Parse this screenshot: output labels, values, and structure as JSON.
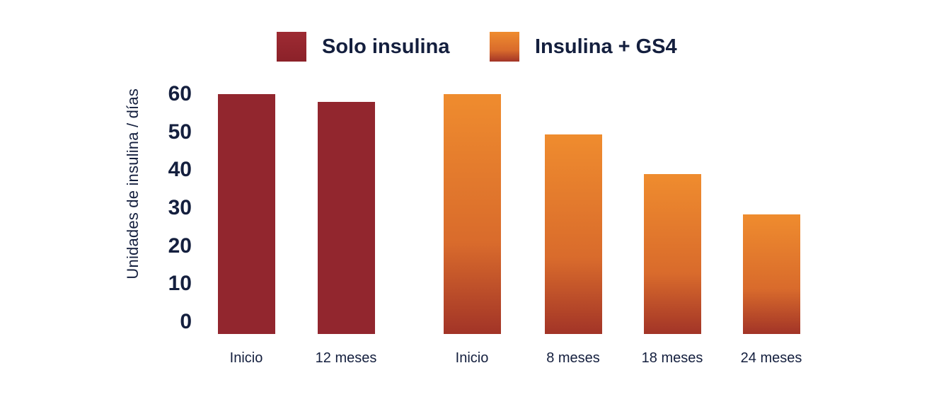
{
  "page": {
    "background": "#ffffff",
    "text_color": "#141f3e"
  },
  "chart_data": {
    "type": "bar",
    "title": "",
    "ylabel": "Unidades de insulina / días",
    "xlabel": "",
    "ylim": [
      0,
      60
    ],
    "yticks": [
      60,
      50,
      40,
      30,
      20,
      10,
      0
    ],
    "grid": false,
    "legend_position": "top",
    "series": [
      {
        "name": "Solo insulina",
        "color": "#92262e",
        "swatch_gradient": [
          "#9e2b33",
          "#8b2129"
        ],
        "categories": [
          "Inicio",
          "12 meses"
        ],
        "values": [
          60,
          58
        ]
      },
      {
        "name": "Insulina + GS4",
        "color_gradient": [
          "#ef8c2e",
          "#d96b2c",
          "#a23427"
        ],
        "categories": [
          "Inicio",
          "8 meses",
          "18 meses",
          "24 meses"
        ],
        "values": [
          60,
          50,
          40,
          30
        ]
      }
    ]
  }
}
